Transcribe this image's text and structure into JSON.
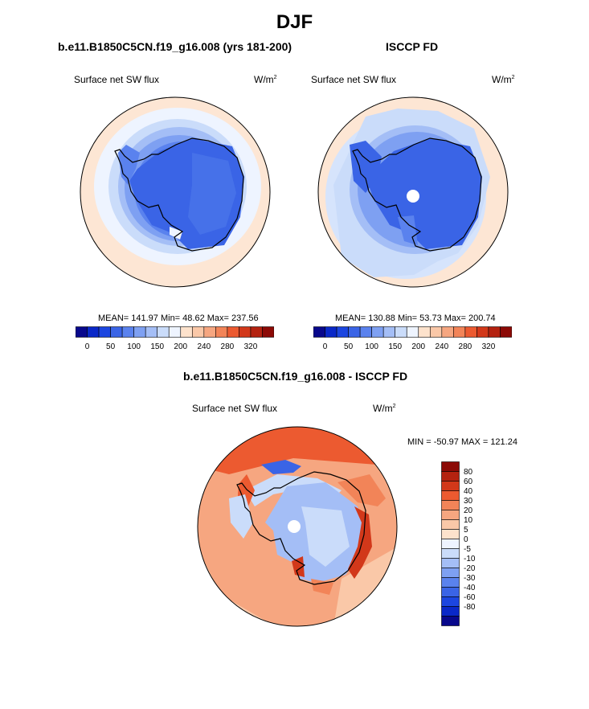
{
  "main_title": "DJF",
  "left_panel": {
    "title": "b.e11.B1850C5CN.f19_g16.008 (yrs 181-200)",
    "field": "Surface net SW flux",
    "units_base": "W/m",
    "units_exp": "2",
    "stats": "MEAN= 141.97  Min=  48.62  Max= 237.56"
  },
  "right_panel": {
    "title": "ISCCP FD",
    "field": "Surface net SW flux",
    "units_base": "W/m",
    "units_exp": "2",
    "stats": "MEAN= 130.88  Min=  53.73  Max= 200.74"
  },
  "diff_panel": {
    "title": "b.e11.B1850C5CN.f19_g16.008 - ISCCP FD",
    "field": "Surface net SW flux",
    "units_base": "W/m",
    "units_exp": "2",
    "stats": "MIN = -50.97 MAX = 121.24"
  },
  "abs_colorbar": {
    "colors": [
      "#08088c",
      "#0a28c8",
      "#1c46e0",
      "#3a64e6",
      "#5a82ee",
      "#7ea0f2",
      "#a4bef6",
      "#cadcfa",
      "#eef4ff",
      "#fde2cc",
      "#fac8a8",
      "#f6a680",
      "#f28458",
      "#ec5a30",
      "#d2381a",
      "#b42210",
      "#8c0a06"
    ],
    "tick_labels": [
      "0",
      "50",
      "100",
      "150",
      "200",
      "240",
      "280",
      "320"
    ]
  },
  "diff_colorbar": {
    "colors": [
      "#8c0a06",
      "#b42210",
      "#d2381a",
      "#ec5a30",
      "#f28458",
      "#f6a680",
      "#fac8a8",
      "#fde2cc",
      "#eef4ff",
      "#cadcfa",
      "#a4bef6",
      "#7ea0f2",
      "#5a82ee",
      "#3a64e6",
      "#1c46e0",
      "#0a28c8",
      "#08088c"
    ],
    "tick_labels": [
      "80",
      "60",
      "40",
      "30",
      "20",
      "10",
      "5",
      "0",
      "-5",
      "-10",
      "-20",
      "-30",
      "-40",
      "-60",
      "-80"
    ]
  }
}
